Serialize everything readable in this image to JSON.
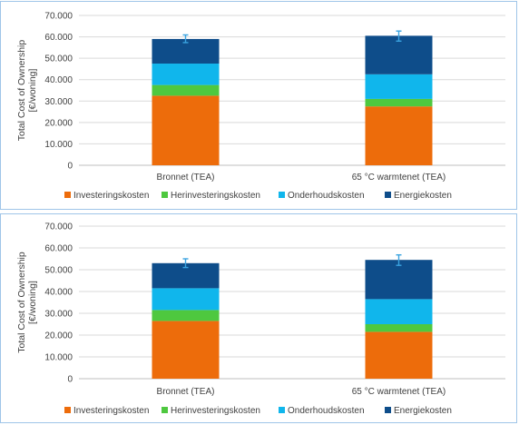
{
  "chart_data": [
    {
      "type": "bar",
      "stacked": true,
      "ylabel": "Total Cost of Ownership\n[€/woning]",
      "xlabel": "",
      "ylim": [
        0,
        70000
      ],
      "ytick_labels": [
        "0",
        "10.000",
        "20.000",
        "30.000",
        "40.000",
        "50.000",
        "60.000",
        "70.000"
      ],
      "categories": [
        "Bronnet (TEA)",
        "65 °C warmtenet (TEA)"
      ],
      "series": [
        {
          "name": "Investeringskosten",
          "color": "#ed6c0b",
          "values": [
            32500,
            27500
          ]
        },
        {
          "name": "Herinvesteringskosten",
          "color": "#4ec83f",
          "values": [
            5000,
            3500
          ]
        },
        {
          "name": "Onderhoudskosten",
          "color": "#10b6ec",
          "values": [
            10000,
            11500
          ]
        },
        {
          "name": "Energiekosten",
          "color": "#0e4d8a",
          "values": [
            11500,
            18000
          ]
        }
      ],
      "error_bars": [
        {
          "center": 59000,
          "low": 57300,
          "high": 60900
        },
        {
          "center": 60400,
          "low": 58000,
          "high": 62700
        }
      ],
      "error_color": "#3aa3e0",
      "grid": true,
      "legend": "bottom"
    },
    {
      "type": "bar",
      "stacked": true,
      "ylabel": "Total Cost of Ownership\n[€/woning]",
      "xlabel": "",
      "ylim": [
        0,
        70000
      ],
      "ytick_labels": [
        "0",
        "10.000",
        "20.000",
        "30.000",
        "40.000",
        "50.000",
        "60.000",
        "70.000"
      ],
      "categories": [
        "Bronnet (TEA)",
        "65 °C warmtenet (TEA)"
      ],
      "series": [
        {
          "name": "Investeringskosten",
          "color": "#ed6c0b",
          "values": [
            26500,
            21500
          ]
        },
        {
          "name": "Herinvesteringskosten",
          "color": "#4ec83f",
          "values": [
            5000,
            3500
          ]
        },
        {
          "name": "Onderhoudskosten",
          "color": "#10b6ec",
          "values": [
            10000,
            11500
          ]
        },
        {
          "name": "Energiekosten",
          "color": "#0e4d8a",
          "values": [
            11500,
            18000
          ]
        }
      ],
      "error_bars": [
        {
          "center": 53000,
          "low": 51000,
          "high": 55000
        },
        {
          "center": 54500,
          "low": 52000,
          "high": 56800
        }
      ],
      "error_color": "#3aa3e0",
      "grid": true,
      "legend": "bottom"
    }
  ]
}
